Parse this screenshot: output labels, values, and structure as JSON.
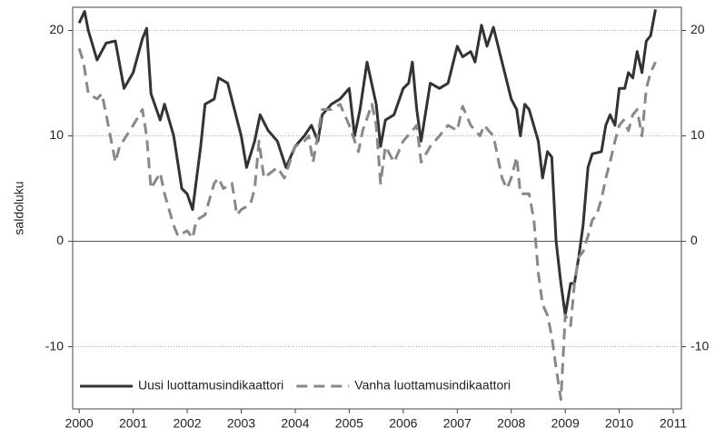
{
  "chart_data": {
    "type": "line",
    "y_label": "saldoluku",
    "xlim": [
      1999.88,
      2011.15
    ],
    "xticks": [
      2000,
      2001,
      2002,
      2003,
      2004,
      2005,
      2006,
      2007,
      2008,
      2009,
      2010,
      2011
    ],
    "ylim": [
      -15.9,
      22.2
    ],
    "yticks": [
      -10,
      0,
      10,
      20
    ],
    "y2lim": [
      -15.9,
      22.2
    ],
    "y2ticks": [
      -10,
      0,
      10,
      20
    ],
    "grid": true,
    "legend": "lower left",
    "series": [
      {
        "name": "Uusi luottamusindikaattori",
        "color": "#333333",
        "dash": "solid",
        "x": [
          2000.0,
          2000.1,
          2000.17,
          2000.33,
          2000.5,
          2000.67,
          2000.83,
          2001.0,
          2001.17,
          2001.25,
          2001.33,
          2001.5,
          2001.58,
          2001.75,
          2001.9,
          2002.0,
          2002.1,
          2002.25,
          2002.33,
          2002.5,
          2002.58,
          2002.75,
          2002.9,
          2003.0,
          2003.1,
          2003.25,
          2003.35,
          2003.5,
          2003.67,
          2003.83,
          2004.0,
          2004.17,
          2004.3,
          2004.42,
          2004.5,
          2004.67,
          2004.83,
          2005.0,
          2005.1,
          2005.2,
          2005.33,
          2005.5,
          2005.58,
          2005.67,
          2005.83,
          2006.0,
          2006.1,
          2006.17,
          2006.25,
          2006.33,
          2006.5,
          2006.67,
          2006.83,
          2007.0,
          2007.1,
          2007.25,
          2007.33,
          2007.45,
          2007.55,
          2007.67,
          2007.83,
          2008.0,
          2008.1,
          2008.17,
          2008.25,
          2008.33,
          2008.5,
          2008.58,
          2008.67,
          2008.75,
          2008.83,
          2008.92,
          2009.0,
          2009.1,
          2009.17,
          2009.25,
          2009.33,
          2009.42,
          2009.5,
          2009.67,
          2009.75,
          2009.83,
          2009.92,
          2010.0,
          2010.1,
          2010.17,
          2010.25,
          2010.33,
          2010.42,
          2010.5,
          2010.58,
          2010.67
        ],
        "values": [
          20.7,
          21.8,
          20,
          17.2,
          18.8,
          19,
          14.5,
          16,
          19.2,
          20.2,
          14,
          11.5,
          13,
          10,
          5,
          4.5,
          3,
          9,
          13,
          13.5,
          15.5,
          15,
          12,
          10,
          7,
          9.5,
          12,
          10.5,
          9.5,
          7,
          9,
          10,
          11,
          9.5,
          12,
          13,
          13.5,
          14.5,
          10,
          12.5,
          17,
          13,
          9,
          11.5,
          12,
          14.5,
          15,
          17,
          12.5,
          9.5,
          15,
          14.5,
          15,
          18.5,
          17.5,
          18,
          17,
          20.5,
          18.5,
          20.3,
          17,
          13.5,
          12.5,
          10,
          13,
          12.5,
          9.5,
          6,
          8.5,
          8,
          0,
          -4,
          -7,
          -4,
          -4,
          -1.5,
          1.5,
          7,
          8.3,
          8.5,
          11,
          12,
          11,
          14.5,
          14.5,
          16,
          15.5,
          18,
          16,
          19,
          19.5,
          22
        ]
      },
      {
        "name": "Vanha luottamusindikaattori",
        "color": "#888888",
        "dash": "dashed",
        "x": [
          2000.0,
          2000.08,
          2000.17,
          2000.33,
          2000.42,
          2000.5,
          2000.67,
          2000.75,
          2001.0,
          2001.17,
          2001.25,
          2001.33,
          2001.5,
          2001.58,
          2001.75,
          2001.83,
          2002.0,
          2002.1,
          2002.17,
          2002.33,
          2002.5,
          2002.58,
          2002.67,
          2002.83,
          2002.92,
          2003.0,
          2003.17,
          2003.25,
          2003.33,
          2003.42,
          2003.67,
          2003.8,
          2004.0,
          2004.17,
          2004.25,
          2004.33,
          2004.5,
          2004.67,
          2004.83,
          2005.0,
          2005.17,
          2005.25,
          2005.42,
          2005.5,
          2005.58,
          2005.67,
          2005.83,
          2006.0,
          2006.17,
          2006.25,
          2006.33,
          2006.5,
          2006.67,
          2006.83,
          2007.0,
          2007.1,
          2007.25,
          2007.42,
          2007.5,
          2007.58,
          2007.67,
          2007.83,
          2007.92,
          2008.0,
          2008.1,
          2008.17,
          2008.33,
          2008.42,
          2008.5,
          2008.58,
          2008.67,
          2008.75,
          2008.83,
          2008.92,
          2009.0,
          2009.1,
          2009.17,
          2009.25,
          2009.33,
          2009.42,
          2009.5,
          2009.58,
          2009.67,
          2009.75,
          2009.83,
          2009.92,
          2010.0,
          2010.08,
          2010.17,
          2010.25,
          2010.33,
          2010.42,
          2010.5,
          2010.58,
          2010.67
        ],
        "values": [
          18.3,
          17,
          14,
          13.5,
          14,
          12,
          7.5,
          9,
          11,
          12.5,
          10,
          5,
          6.5,
          4.5,
          1.5,
          0.5,
          1,
          0.3,
          2,
          2.5,
          5.5,
          6,
          5,
          5.5,
          2.5,
          3,
          3.5,
          5,
          9.5,
          6,
          7,
          6,
          9,
          9.5,
          10,
          7.5,
          12.5,
          12.5,
          13,
          11,
          8.5,
          10.5,
          13,
          11,
          5.5,
          9,
          7.5,
          9.5,
          10.5,
          11,
          7.5,
          9,
          10,
          11,
          10.5,
          12.8,
          11,
          10,
          11,
          10.5,
          10,
          6,
          5,
          6,
          8,
          4.5,
          4.5,
          2,
          -3,
          -6,
          -7,
          -9,
          -12,
          -15,
          -7,
          -8,
          -4,
          -1.5,
          -1,
          0.5,
          2,
          2.5,
          4,
          6,
          7.5,
          9.5,
          11,
          11.5,
          10.5,
          12,
          12.5,
          10,
          14.5,
          16,
          17
        ]
      }
    ]
  }
}
